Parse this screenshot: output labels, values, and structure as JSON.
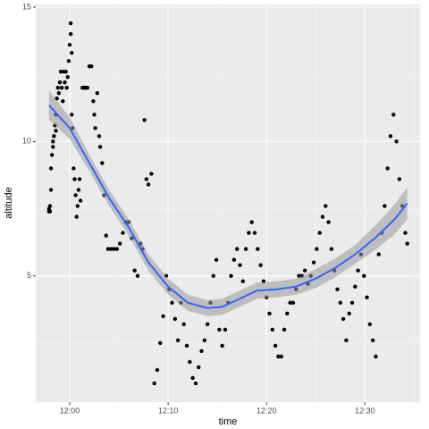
{
  "chart_data": {
    "type": "scatter",
    "x_label": "time",
    "y_label": "altitude",
    "xlim": [
      716.55,
      755.6
    ],
    "ylim": [
      0.3,
      15.1
    ],
    "xticks": [
      {
        "value": 720,
        "label": "12:00"
      },
      {
        "value": 730,
        "label": "12:10"
      },
      {
        "value": 740,
        "label": "12:20"
      },
      {
        "value": 750,
        "label": "12:30"
      }
    ],
    "yticks": [
      5,
      10,
      15
    ],
    "grid": true,
    "color": "#000000",
    "points": [
      [
        717.9,
        7.4
      ],
      [
        717.9,
        7.5
      ],
      [
        718.0,
        7.4
      ],
      [
        718.0,
        7.6
      ],
      [
        718.1,
        8.2
      ],
      [
        718.1,
        9.0
      ],
      [
        718.2,
        9.5
      ],
      [
        718.3,
        10.0
      ],
      [
        718.3,
        9.8
      ],
      [
        718.4,
        10.2
      ],
      [
        718.5,
        10.6
      ],
      [
        718.6,
        11.0
      ],
      [
        718.6,
        10.4
      ],
      [
        718.7,
        11.6
      ],
      [
        718.8,
        12.0
      ],
      [
        718.9,
        11.8
      ],
      [
        719.0,
        12.2
      ],
      [
        719.1,
        12.6
      ],
      [
        719.2,
        12.0
      ],
      [
        719.3,
        11.5
      ],
      [
        719.4,
        12.6
      ],
      [
        719.5,
        12.2
      ],
      [
        719.6,
        12.6
      ],
      [
        719.7,
        12.0
      ],
      [
        719.8,
        12.4
      ],
      [
        719.9,
        13.0
      ],
      [
        720.0,
        13.6
      ],
      [
        720.1,
        14.0
      ],
      [
        720.1,
        14.4
      ],
      [
        720.2,
        13.3
      ],
      [
        720.2,
        11.0
      ],
      [
        720.3,
        10.5
      ],
      [
        720.4,
        9.0
      ],
      [
        720.5,
        8.6
      ],
      [
        720.6,
        8.0
      ],
      [
        720.7,
        7.2
      ],
      [
        720.8,
        7.6
      ],
      [
        720.9,
        8.2
      ],
      [
        721.0,
        8.6
      ],
      [
        721.1,
        7.8
      ],
      [
        721.3,
        12.0
      ],
      [
        721.4,
        12.0
      ],
      [
        721.5,
        12.0
      ],
      [
        721.6,
        12.0
      ],
      [
        721.8,
        12.0
      ],
      [
        722.0,
        12.8
      ],
      [
        722.2,
        12.8
      ],
      [
        722.4,
        11.5
      ],
      [
        722.5,
        11.0
      ],
      [
        722.6,
        10.5
      ],
      [
        722.8,
        11.8
      ],
      [
        723.0,
        10.2
      ],
      [
        723.1,
        9.8
      ],
      [
        723.3,
        9.2
      ],
      [
        723.5,
        8.0
      ],
      [
        723.7,
        6.5
      ],
      [
        723.9,
        6.0
      ],
      [
        724.2,
        6.0
      ],
      [
        724.5,
        6.0
      ],
      [
        724.8,
        6.0
      ],
      [
        725.1,
        6.2
      ],
      [
        725.4,
        6.6
      ],
      [
        725.7,
        7.0
      ],
      [
        726.0,
        7.0
      ],
      [
        726.3,
        6.4
      ],
      [
        726.6,
        5.2
      ],
      [
        726.9,
        5.0
      ],
      [
        727.2,
        6.2
      ],
      [
        727.4,
        6.0
      ],
      [
        727.6,
        10.8
      ],
      [
        727.8,
        8.6
      ],
      [
        728.0,
        8.4
      ],
      [
        728.3,
        8.8
      ],
      [
        728.6,
        1.0
      ],
      [
        728.9,
        1.5
      ],
      [
        729.2,
        2.5
      ],
      [
        729.5,
        3.5
      ],
      [
        729.8,
        5.0
      ],
      [
        730.1,
        4.5
      ],
      [
        730.4,
        4.0
      ],
      [
        730.7,
        3.4
      ],
      [
        731.0,
        2.6
      ],
      [
        731.3,
        4.0
      ],
      [
        731.6,
        3.2
      ],
      [
        731.9,
        2.4
      ],
      [
        732.2,
        1.8
      ],
      [
        732.5,
        1.2
      ],
      [
        732.8,
        1.0
      ],
      [
        733.1,
        1.6
      ],
      [
        733.4,
        2.2
      ],
      [
        733.7,
        2.6
      ],
      [
        734.0,
        3.2
      ],
      [
        734.3,
        4.0
      ],
      [
        734.6,
        5.0
      ],
      [
        734.9,
        5.6
      ],
      [
        735.2,
        3.0
      ],
      [
        735.5,
        2.4
      ],
      [
        735.8,
        3.0
      ],
      [
        736.1,
        4.0
      ],
      [
        736.4,
        5.0
      ],
      [
        736.7,
        5.6
      ],
      [
        737.0,
        6.0
      ],
      [
        737.3,
        5.4
      ],
      [
        737.6,
        4.8
      ],
      [
        737.9,
        6.0
      ],
      [
        738.2,
        6.6
      ],
      [
        738.5,
        7.0
      ],
      [
        738.8,
        6.6
      ],
      [
        739.1,
        6.0
      ],
      [
        739.4,
        5.4
      ],
      [
        739.7,
        4.8
      ],
      [
        740.0,
        4.2
      ],
      [
        740.3,
        3.6
      ],
      [
        740.6,
        3.0
      ],
      [
        740.9,
        2.4
      ],
      [
        741.2,
        2.0
      ],
      [
        741.5,
        2.0
      ],
      [
        741.8,
        3.0
      ],
      [
        742.1,
        3.6
      ],
      [
        742.4,
        4.0
      ],
      [
        742.7,
        4.0
      ],
      [
        743.0,
        4.5
      ],
      [
        743.3,
        5.0
      ],
      [
        743.6,
        5.0
      ],
      [
        743.9,
        5.2
      ],
      [
        744.2,
        4.7
      ],
      [
        744.5,
        5.0
      ],
      [
        744.8,
        5.5
      ],
      [
        745.1,
        6.0
      ],
      [
        745.4,
        6.6
      ],
      [
        745.7,
        7.2
      ],
      [
        746.0,
        7.6
      ],
      [
        746.3,
        7.0
      ],
      [
        746.6,
        6.0
      ],
      [
        746.9,
        5.2
      ],
      [
        747.2,
        4.5
      ],
      [
        747.5,
        4.0
      ],
      [
        747.8,
        3.4
      ],
      [
        748.1,
        2.6
      ],
      [
        748.4,
        3.6
      ],
      [
        748.7,
        4.0
      ],
      [
        749.0,
        4.6
      ],
      [
        749.3,
        5.2
      ],
      [
        749.6,
        5.8
      ],
      [
        749.9,
        5.0
      ],
      [
        750.2,
        4.2
      ],
      [
        750.5,
        3.2
      ],
      [
        750.8,
        2.6
      ],
      [
        751.1,
        2.0
      ],
      [
        751.4,
        5.8
      ],
      [
        751.7,
        6.6
      ],
      [
        752.0,
        7.6
      ],
      [
        752.3,
        9.0
      ],
      [
        752.6,
        10.2
      ],
      [
        752.9,
        11.0
      ],
      [
        753.2,
        10.0
      ],
      [
        753.5,
        8.6
      ],
      [
        753.8,
        7.6
      ],
      [
        754.1,
        6.6
      ],
      [
        754.3,
        6.2
      ]
    ],
    "smooth": {
      "color": "#3366ff",
      "band_color": "#999999",
      "x": [
        717.9,
        720,
        722,
        724,
        726,
        728,
        730,
        732,
        734,
        735.5,
        737,
        739,
        741,
        743,
        745,
        747,
        749,
        751,
        753,
        754.3
      ],
      "values": [
        11.35,
        10.5,
        9.2,
        7.9,
        6.8,
        5.5,
        4.6,
        4.0,
        3.8,
        3.85,
        4.1,
        4.45,
        4.5,
        4.6,
        4.9,
        5.3,
        5.8,
        6.4,
        7.1,
        7.7
      ],
      "lower": [
        10.8,
        10.1,
        8.9,
        7.6,
        6.5,
        5.2,
        4.3,
        3.7,
        3.5,
        3.55,
        3.8,
        4.15,
        4.2,
        4.3,
        4.55,
        4.95,
        5.45,
        5.95,
        6.55,
        7.1
      ],
      "upper": [
        11.9,
        10.9,
        9.5,
        8.2,
        7.1,
        5.8,
        4.9,
        4.3,
        4.1,
        4.15,
        4.4,
        4.75,
        4.8,
        4.9,
        5.25,
        5.65,
        6.15,
        6.85,
        7.65,
        8.3
      ]
    }
  }
}
